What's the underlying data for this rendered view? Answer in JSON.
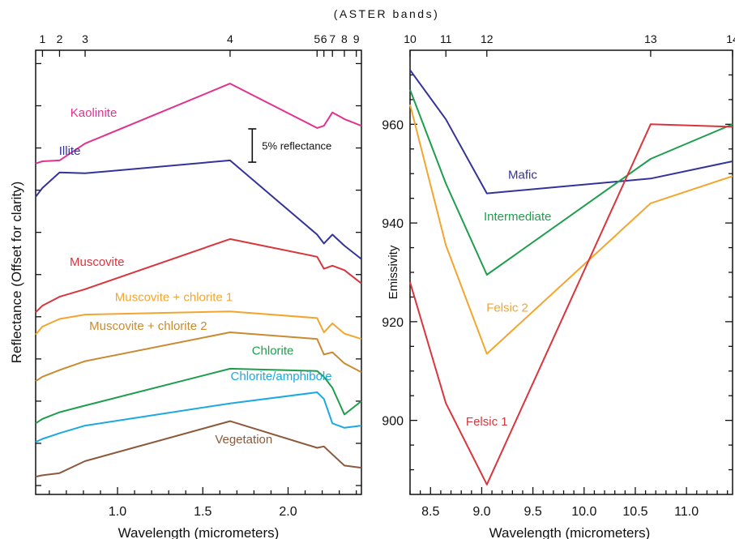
{
  "top_label": "(ASTER bands)",
  "chart_data": [
    {
      "type": "line",
      "xlabel": "Wavelength (micrometers)",
      "ylabel": "Reflectance (Offset for clarity)",
      "xlim": [
        0.52,
        2.43
      ],
      "ylim": [
        0,
        100
      ],
      "xticks": [
        1.0,
        1.5,
        2.0
      ],
      "xtick_labels": [
        "1.0",
        "1.5",
        "2.0"
      ],
      "top_axis": {
        "label": "(ASTER bands)",
        "bands": [
          {
            "label": "1",
            "x": 0.56
          },
          {
            "label": "2",
            "x": 0.66
          },
          {
            "label": "3",
            "x": 0.81
          },
          {
            "label": "4",
            "x": 1.66
          },
          {
            "label": "5",
            "x": 2.17
          },
          {
            "label": "6",
            "x": 2.21
          },
          {
            "label": "7",
            "x": 2.26
          },
          {
            "label": "8",
            "x": 2.33
          },
          {
            "label": "9",
            "x": 2.4
          }
        ]
      },
      "scale_bar": {
        "label": "5% reflectance",
        "x": 1.79,
        "y0": 74.8,
        "y1": 82.3
      },
      "x": [
        0.52,
        0.56,
        0.66,
        0.81,
        1.66,
        2.17,
        2.21,
        2.26,
        2.33,
        2.43
      ],
      "series": [
        {
          "name": "Kaolinite",
          "color": "#e0338f",
          "values": [
            74.5,
            75,
            75.2,
            79,
            92.5,
            82.5,
            83,
            86,
            84.5,
            83
          ]
        },
        {
          "name": "Illite",
          "color": "#34339a",
          "values": [
            67,
            69,
            72.5,
            72.3,
            75.2,
            58.5,
            56.5,
            58.5,
            56,
            53
          ]
        },
        {
          "name": "Muscovite",
          "color": "#d9353c",
          "values": [
            41,
            42.5,
            44.5,
            46.2,
            57.5,
            53.5,
            50.8,
            51.5,
            50.5,
            47.5
          ]
        },
        {
          "name": "Muscovite + chlorite 1",
          "color": "#f2a630",
          "values": [
            36,
            37.8,
            39.5,
            40.5,
            41.2,
            39.7,
            36.5,
            38.5,
            36.2,
            35
          ]
        },
        {
          "name": "Muscovite + chlorite 2",
          "color": "#c98a30",
          "values": [
            25.5,
            26.5,
            28,
            30,
            36.5,
            35,
            31.5,
            32,
            29.5,
            27.5
          ]
        },
        {
          "name": "Chlorite",
          "color": "#1e9e4d",
          "values": [
            16,
            17,
            18.5,
            20,
            28.3,
            27.8,
            26.5,
            24,
            18,
            21
          ]
        },
        {
          "name": "Chlorite/amphibole",
          "color": "#1ba9e0",
          "values": [
            11.8,
            12.5,
            13.8,
            15.5,
            20.5,
            23,
            21.5,
            16,
            15,
            15.5
          ]
        },
        {
          "name": "Vegetation",
          "color": "#8b5a3c",
          "values": [
            4,
            4.3,
            4.8,
            7.5,
            16.5,
            10.5,
            10.8,
            9,
            6.5,
            6
          ]
        }
      ],
      "labels": [
        {
          "text": "Kaolinite",
          "series": 0,
          "x": 0.86,
          "y": 85
        },
        {
          "text": "Illite",
          "series": 1,
          "x": 0.72,
          "y": 76.5
        },
        {
          "text": "Muscovite",
          "series": 2,
          "x": 0.88,
          "y": 51.5
        },
        {
          "text": "Muscovite + chlorite 1",
          "series": 3,
          "x": 1.33,
          "y": 43.5
        },
        {
          "text": "Muscovite + chlorite 2",
          "series": 4,
          "x": 1.18,
          "y": 37
        },
        {
          "text": "Chlorite",
          "series": 5,
          "x": 1.91,
          "y": 31.5
        },
        {
          "text": "Chlorite/amphibole",
          "series": 6,
          "x": 1.96,
          "y": 25.7
        },
        {
          "text": "Vegetation",
          "series": 7,
          "x": 1.74,
          "y": 11.5
        }
      ]
    },
    {
      "type": "line",
      "xlabel": "Wavelength (micrometers)",
      "ylabel": "Emissivity",
      "xlim": [
        8.3,
        11.45
      ],
      "ylim": [
        885,
        975
      ],
      "xticks": [
        8.5,
        9.0,
        9.5,
        10.0,
        10.5,
        11.0
      ],
      "xtick_labels": [
        "8.5",
        "9.0",
        "9.5",
        "10.0",
        "10.5",
        "11.0"
      ],
      "yticks": [
        900,
        920,
        940,
        960
      ],
      "ytick_labels": [
        "900",
        "920",
        "940",
        "960"
      ],
      "top_axis": {
        "label": "(ASTER bands)",
        "bands": [
          {
            "label": "10",
            "x": 8.3
          },
          {
            "label": "11",
            "x": 8.65
          },
          {
            "label": "12",
            "x": 9.05
          },
          {
            "label": "13",
            "x": 10.65
          },
          {
            "label": "14",
            "x": 11.45
          }
        ]
      },
      "x": [
        8.3,
        8.65,
        9.05,
        10.65,
        11.45
      ],
      "series": [
        {
          "name": "Mafic",
          "color": "#34339a",
          "values": [
            971,
            961,
            946,
            949,
            952.5
          ]
        },
        {
          "name": "Intermediate",
          "color": "#1e9e4d",
          "values": [
            967,
            948,
            929.5,
            953,
            960
          ]
        },
        {
          "name": "Felsic 2",
          "color": "#f2a630",
          "values": [
            964,
            935.5,
            913.5,
            944,
            949.5
          ]
        },
        {
          "name": "Felsic 1",
          "color": "#d9353c",
          "values": [
            928,
            903.5,
            887,
            960,
            959.5
          ]
        }
      ],
      "labels": [
        {
          "text": "Mafic",
          "series": 0,
          "x": 9.4,
          "y": 949
        },
        {
          "text": "Intermediate",
          "series": 1,
          "x": 9.35,
          "y": 940.5
        },
        {
          "text": "Felsic 2",
          "series": 2,
          "x": 9.25,
          "y": 922
        },
        {
          "text": "Felsic 1",
          "series": 3,
          "x": 9.05,
          "y": 899
        }
      ]
    }
  ]
}
